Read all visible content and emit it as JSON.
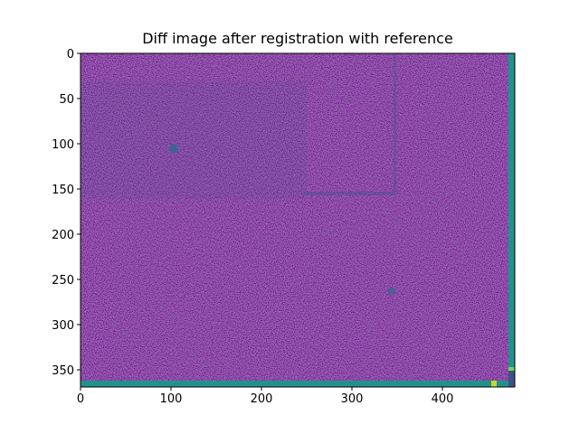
{
  "chart_data": {
    "type": "image",
    "title": "Diff image after registration with reference",
    "xlim": [
      0,
      480
    ],
    "ylim": [
      369,
      0
    ],
    "xticks": [
      0,
      100,
      200,
      300,
      400
    ],
    "yticks": [
      0,
      50,
      100,
      150,
      200,
      250,
      300,
      350
    ]
  }
}
